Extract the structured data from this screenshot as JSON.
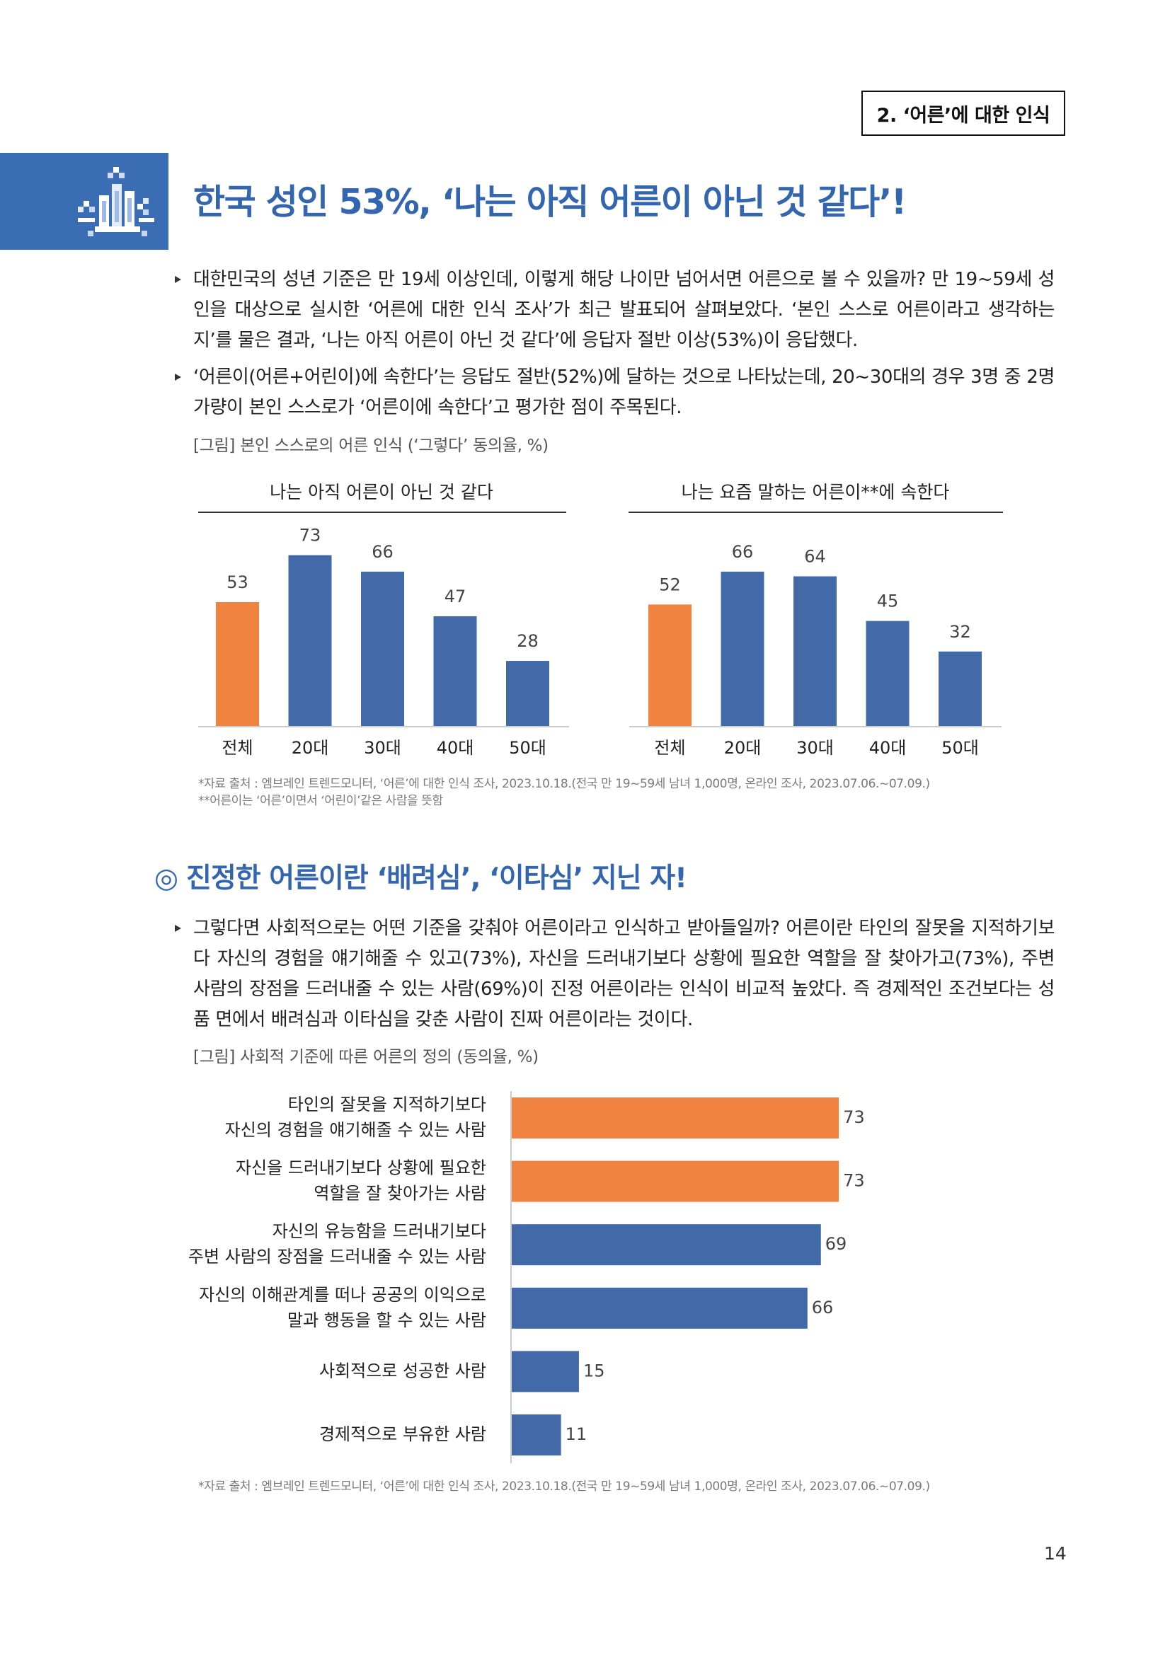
{
  "header": {
    "section_tag": "2. ‘어른’에 대한 인식"
  },
  "icons": {
    "banner": "chart-icon",
    "bullet": "triangle-bullet-icon"
  },
  "colors": {
    "accent_blue": "#3466b0",
    "banner_blue": "#3b6db4",
    "bar_orange": "#f0833f",
    "bar_blue": "#426aa8"
  },
  "section1": {
    "title": "한국 성인 53%, ‘나는 아직 어른이 아닌 것 같다’!",
    "bullets": [
      "대한민국의 성년 기준은 만 19세 이상인데, 이렇게 해당 나이만 넘어서면 어른으로 볼 수 있을까? 만 19~59세 성인을 대상으로 실시한 ‘어른에 대한 인식 조사’가 최근 발표되어 살펴보았다. ‘본인 스스로 어른이라고 생각하는지’를 물은 결과, ‘나는 아직 어른이 아닌 것 같다’에 응답자 절반 이상(53%)이 응답했다.",
      "‘어른이(어른+어린이)에 속한다’는 응답도 절반(52%)에 달하는 것으로 나타났는데, 20~30대의 경우 3명 중 2명가량이 본인 스스로가 ‘어른이에 속한다’고 평가한 점이 주목된다."
    ],
    "figure_caption": "[그림] 본인 스스로의 어른 인식 (‘그렇다’ 동의율, %)",
    "footnote_source": "*자료 출처 : 엠브레인 트렌드모니터, ‘어른’에 대한 인식 조사, 2023.10.18.(전국 만 19~59세 남녀 1,000명, 온라인 조사, 2023.07.06.~07.09.)",
    "footnote_note": "**어른이는 ‘어른’이면서 ‘어린이’같은 사람을 뜻함"
  },
  "section2": {
    "title_marker": "◎",
    "title": "진정한 어른이란 ‘배려심’, ‘이타심’ 지닌 자!",
    "bullets": [
      "그렇다면 사회적으로는 어떤 기준을 갖춰야 어른이라고 인식하고 받아들일까? 어른이란 타인의 잘못을 지적하기보다 자신의 경험을 얘기해줄 수 있고(73%), 자신을 드러내기보다 상황에 필요한 역할을 잘 찾아가고(73%), 주변 사람의 장점을 드러내줄 수 있는 사람(69%)이 진정 어른이라는 인식이 비교적 높았다. 즉 경제적인 조건보다는 성품 면에서 배려심과 이타심을 갖춘 사람이 진짜 어른이라는 것이다."
    ],
    "figure_caption": "[그림] 사회적 기준에 따른 어른의 정의 (동의율, %)",
    "footnote_source": "*자료 출처 : 엠브레인 트렌드모니터, ‘어른’에 대한 인식 조사, 2023.10.18.(전국 만 19~59세 남녀 1,000명, 온라인 조사, 2023.07.06.~07.09.)"
  },
  "page_number": "14",
  "chart_data": [
    {
      "type": "bar",
      "orientation": "vertical",
      "title": "나는 아직 어른이 아닌 것 같다",
      "categories": [
        "전체",
        "20대",
        "30대",
        "40대",
        "50대"
      ],
      "values": [
        53,
        73,
        66,
        47,
        28
      ],
      "bar_colors": [
        "#f0833f",
        "#426aa8",
        "#426aa8",
        "#426aa8",
        "#426aa8"
      ],
      "xlabel": "",
      "ylabel": "",
      "grid": false
    },
    {
      "type": "bar",
      "orientation": "vertical",
      "title": "나는 요즘 말하는 어른이**에 속한다",
      "categories": [
        "전체",
        "20대",
        "30대",
        "40대",
        "50대"
      ],
      "values": [
        52,
        66,
        64,
        45,
        32
      ],
      "bar_colors": [
        "#f0833f",
        "#426aa8",
        "#426aa8",
        "#426aa8",
        "#426aa8"
      ],
      "xlabel": "",
      "ylabel": "",
      "grid": false
    },
    {
      "type": "bar",
      "orientation": "horizontal",
      "categories": [
        [
          "타인의 잘못을 지적하기보다",
          "자신의 경험을 얘기해줄 수 있는 사람"
        ],
        [
          "자신을 드러내기보다 상황에 필요한",
          "역할을 잘 찾아가는 사람"
        ],
        [
          "자신의 유능함을 드러내기보다",
          "주변 사람의 장점을 드러내줄 수 있는 사람"
        ],
        [
          "자신의 이해관계를 떠나 공공의 이익으로",
          "말과 행동을 할 수 있는 사람"
        ],
        [
          "사회적으로 성공한 사람"
        ],
        [
          "경제적으로 부유한 사람"
        ]
      ],
      "values": [
        73,
        73,
        69,
        66,
        15,
        11
      ],
      "bar_colors": [
        "#f0833f",
        "#f0833f",
        "#426aa8",
        "#426aa8",
        "#426aa8",
        "#426aa8"
      ],
      "xlabel": "",
      "ylabel": "",
      "grid": false
    }
  ]
}
